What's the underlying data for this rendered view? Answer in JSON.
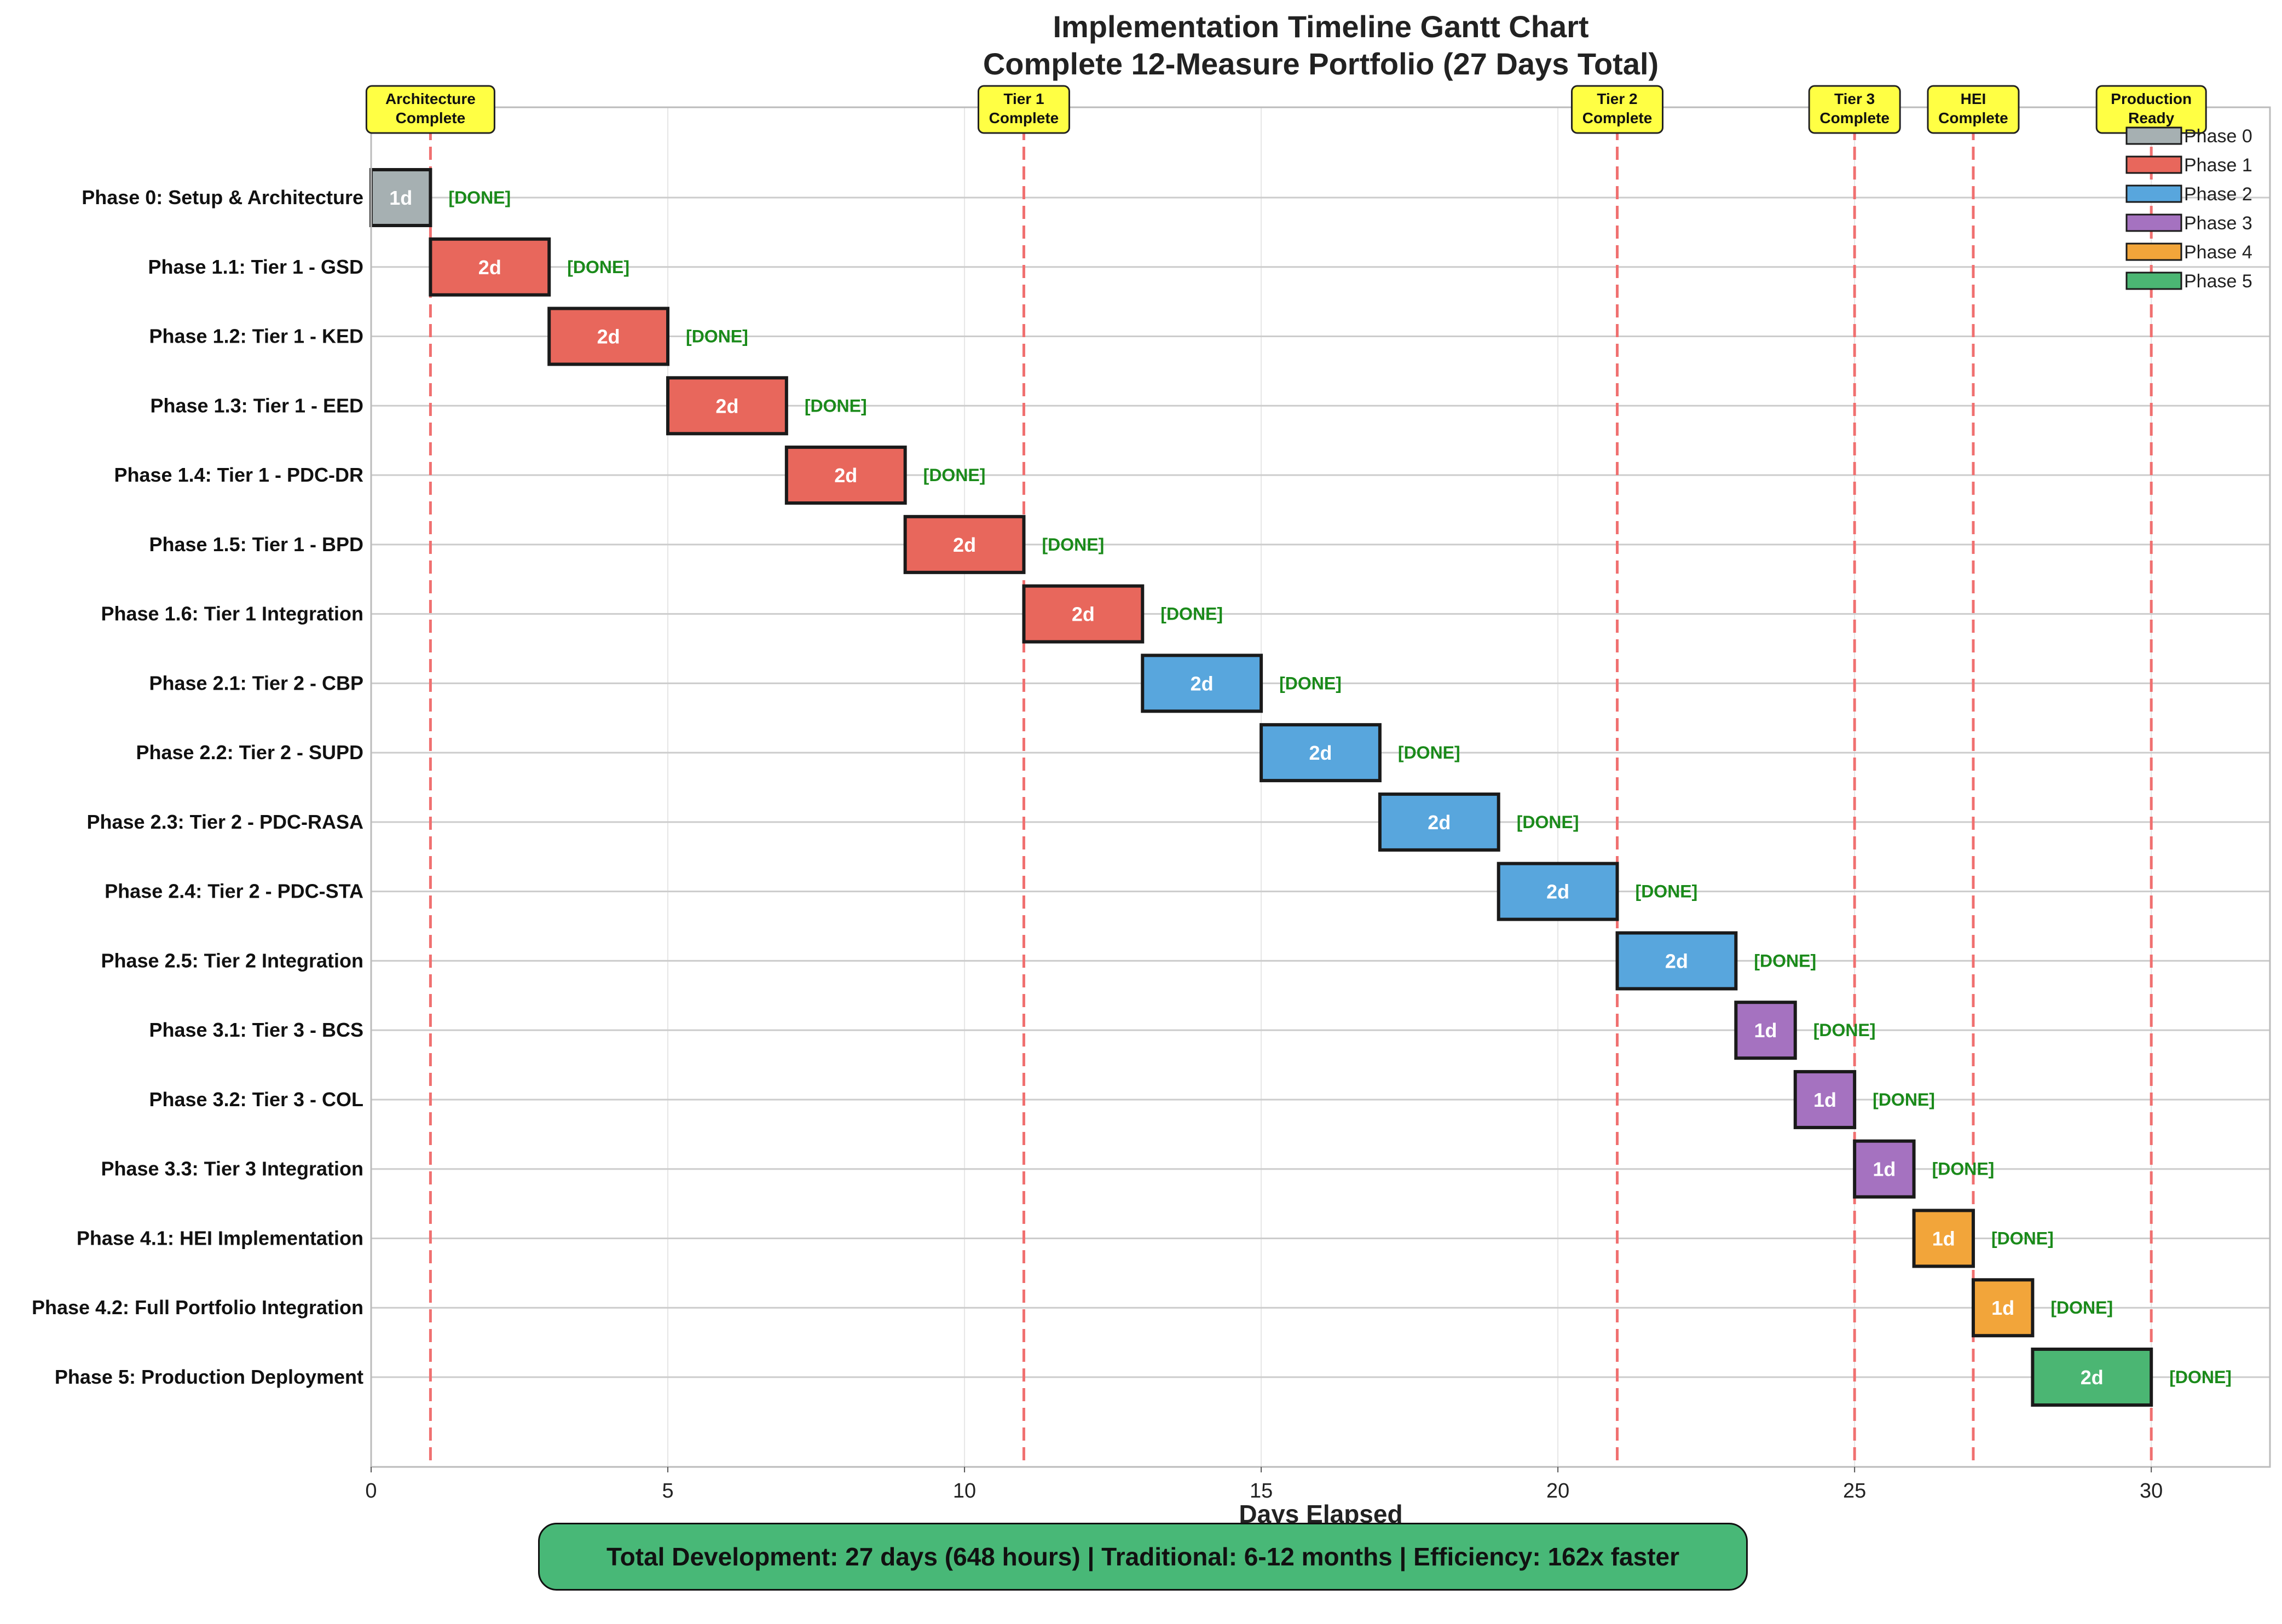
{
  "chart_data": {
    "type": "bar",
    "subtype": "gantt",
    "title": "Implementation Timeline Gantt Chart",
    "subtitle": "Complete 12-Measure Portfolio (27 Days Total)",
    "xlabel": "Days Elapsed",
    "ylabel": "",
    "xlim": [
      0,
      32
    ],
    "xticks": [
      0,
      5,
      10,
      15,
      20,
      25,
      30
    ],
    "grid": true,
    "legend_position": "top-right",
    "phase_colors": {
      "Phase 0": "#a6b0b2",
      "Phase 1": "#e8675c",
      "Phase 2": "#58a6dd",
      "Phase 3": "#a572c0",
      "Phase 4": "#f2a53a",
      "Phase 5": "#4bb673"
    },
    "legend": [
      "Phase 0",
      "Phase 1",
      "Phase 2",
      "Phase 3",
      "Phase 4",
      "Phase 5"
    ],
    "tasks": [
      {
        "name": "Phase 0: Setup & Architecture",
        "start": 0,
        "duration": 1,
        "label": "1d",
        "status": "[DONE]",
        "phase": "Phase 0"
      },
      {
        "name": "Phase 1.1: Tier 1 - GSD",
        "start": 1,
        "duration": 2,
        "label": "2d",
        "status": "[DONE]",
        "phase": "Phase 1"
      },
      {
        "name": "Phase 1.2: Tier 1 - KED",
        "start": 3,
        "duration": 2,
        "label": "2d",
        "status": "[DONE]",
        "phase": "Phase 1"
      },
      {
        "name": "Phase 1.3: Tier 1 - EED",
        "start": 5,
        "duration": 2,
        "label": "2d",
        "status": "[DONE]",
        "phase": "Phase 1"
      },
      {
        "name": "Phase 1.4: Tier 1 - PDC-DR",
        "start": 7,
        "duration": 2,
        "label": "2d",
        "status": "[DONE]",
        "phase": "Phase 1"
      },
      {
        "name": "Phase 1.5: Tier 1 - BPD",
        "start": 9,
        "duration": 2,
        "label": "2d",
        "status": "[DONE]",
        "phase": "Phase 1"
      },
      {
        "name": "Phase 1.6: Tier 1 Integration",
        "start": 11,
        "duration": 2,
        "label": "2d",
        "status": "[DONE]",
        "phase": "Phase 1"
      },
      {
        "name": "Phase 2.1: Tier 2 - CBP",
        "start": 13,
        "duration": 2,
        "label": "2d",
        "status": "[DONE]",
        "phase": "Phase 2"
      },
      {
        "name": "Phase 2.2: Tier 2 - SUPD",
        "start": 15,
        "duration": 2,
        "label": "2d",
        "status": "[DONE]",
        "phase": "Phase 2"
      },
      {
        "name": "Phase 2.3: Tier 2 - PDC-RASA",
        "start": 17,
        "duration": 2,
        "label": "2d",
        "status": "[DONE]",
        "phase": "Phase 2"
      },
      {
        "name": "Phase 2.4: Tier 2 - PDC-STA",
        "start": 19,
        "duration": 2,
        "label": "2d",
        "status": "[DONE]",
        "phase": "Phase 2"
      },
      {
        "name": "Phase 2.5: Tier 2 Integration",
        "start": 21,
        "duration": 2,
        "label": "2d",
        "status": "[DONE]",
        "phase": "Phase 2"
      },
      {
        "name": "Phase 3.1: Tier 3 - BCS",
        "start": 23,
        "duration": 1,
        "label": "1d",
        "status": "[DONE]",
        "phase": "Phase 3"
      },
      {
        "name": "Phase 3.2: Tier 3 - COL",
        "start": 24,
        "duration": 1,
        "label": "1d",
        "status": "[DONE]",
        "phase": "Phase 3"
      },
      {
        "name": "Phase 3.3: Tier 3 Integration",
        "start": 25,
        "duration": 1,
        "label": "1d",
        "status": "[DONE]",
        "phase": "Phase 3"
      },
      {
        "name": "Phase 4.1: HEI Implementation",
        "start": 26,
        "duration": 1,
        "label": "1d",
        "status": "[DONE]",
        "phase": "Phase 4"
      },
      {
        "name": "Phase 4.2: Full Portfolio Integration",
        "start": 27,
        "duration": 1,
        "label": "1d",
        "status": "[DONE]",
        "phase": "Phase 4"
      },
      {
        "name": "Phase 5: Production Deployment",
        "start": 28,
        "duration": 2,
        "label": "2d",
        "status": "[DONE]",
        "phase": "Phase 5"
      }
    ],
    "milestones": [
      {
        "day": 1,
        "label": [
          "Architecture",
          "Complete"
        ]
      },
      {
        "day": 11,
        "label": [
          "Tier 1",
          "Complete"
        ]
      },
      {
        "day": 21,
        "label": [
          "Tier 2",
          "Complete"
        ]
      },
      {
        "day": 25,
        "label": [
          "Tier 3",
          "Complete"
        ]
      },
      {
        "day": 27,
        "label": [
          "HEI",
          "Complete"
        ]
      },
      {
        "day": 30,
        "label": [
          "Production",
          "Ready"
        ]
      }
    ],
    "milestone_line_color": "#f07070",
    "milestone_box_color": "#ffff44",
    "summary": "Total Development: 27 days (648 hours) | Traditional: 6-12 months | Efficiency: 162x faster",
    "summary_color": "#48b877"
  }
}
